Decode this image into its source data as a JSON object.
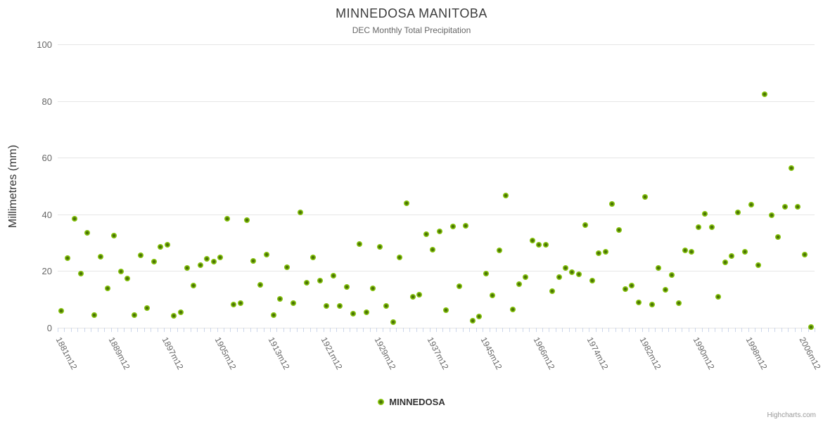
{
  "title": "MINNEDOSA MANITOBA",
  "subtitle": "DEC Monthly Total Precipitation",
  "legend": {
    "label": "MINNEDOSA",
    "marker_icon": "circle-marker-icon"
  },
  "credit": "Highcharts.com",
  "colors": {
    "point_outer": "#84c10d",
    "point_inner": "#4b7405",
    "grid": "#e6e6e6",
    "tick": "#ccd6eb",
    "title_text": "#3c3c3c",
    "subtitle_text": "#666666",
    "axis_label_text": "#666666",
    "y_axis_title_text": "#333333",
    "legend_text": "#333333",
    "credit_text": "#999999"
  },
  "chart_data": {
    "type": "scatter",
    "title": "MINNEDOSA MANITOBA",
    "subtitle": "DEC Monthly Total Precipitation",
    "xlabel": "",
    "ylabel": "Millimetres (mm)",
    "ylim": [
      0,
      100
    ],
    "yticks": [
      0,
      20,
      40,
      60,
      80,
      100
    ],
    "grid": "horizontal",
    "legend_position": "bottom-center",
    "n_categories": 114,
    "x_tick_label_every": 8,
    "x_tick_labels": [
      "1881m12",
      "1889m12",
      "1897m12",
      "1905m12",
      "1913m12",
      "1921m12",
      "1929m12",
      "1937m12",
      "1945m12",
      "1966m12",
      "1974m12",
      "1982m12",
      "1990m12",
      "1998m12",
      "2006m12"
    ],
    "series": [
      {
        "name": "MINNEDOSA",
        "values": [
          5.9,
          24.5,
          38.5,
          19.0,
          33.5,
          4.5,
          25.0,
          13.8,
          32.5,
          19.8,
          17.3,
          4.5,
          25.5,
          7.0,
          23.3,
          28.5,
          29.2,
          4.2,
          5.5,
          21.0,
          15.0,
          22.2,
          24.2,
          23.4,
          24.8,
          38.5,
          8.1,
          8.6,
          38.0,
          23.6,
          15.2,
          25.8,
          4.4,
          10.2,
          21.3,
          8.7,
          40.8,
          15.9,
          24.7,
          16.6,
          7.7,
          18.4,
          7.7,
          14.3,
          5.0,
          29.6,
          5.4,
          13.8,
          28.6,
          7.7,
          2.1,
          24.8,
          44.0,
          11.0,
          11.6,
          33.1,
          27.5,
          33.9,
          6.1,
          35.8,
          14.6,
          35.9,
          2.4,
          4.0,
          19.2,
          11.4,
          27.2,
          46.6,
          6.4,
          15.5,
          17.8,
          30.8,
          29.2,
          29.2,
          12.9,
          17.8,
          21.0,
          19.5,
          18.8,
          36.2,
          16.7,
          26.3,
          26.9,
          43.6,
          34.5,
          13.7,
          14.9,
          8.9,
          46.1,
          8.1,
          21.0,
          13.4,
          18.5,
          8.7,
          27.2,
          26.7,
          35.6,
          40.2,
          35.4,
          10.8,
          23.0,
          25.4,
          40.7,
          26.7,
          43.5,
          22.2,
          82.5,
          39.6,
          31.9,
          42.6,
          56.3,
          42.6,
          25.9,
          0.3
        ]
      }
    ]
  }
}
